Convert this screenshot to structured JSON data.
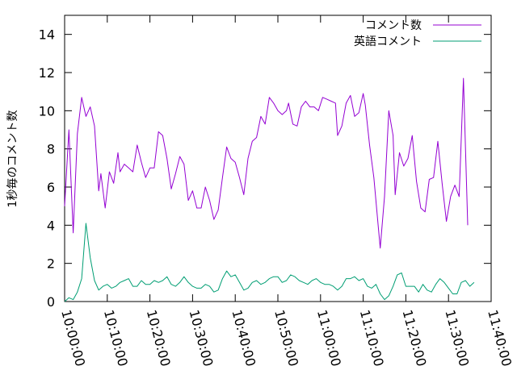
{
  "chart_data": {
    "type": "line",
    "ylabel": "1秒毎のコメント数",
    "ylim": [
      0,
      15
    ],
    "y_ticks": [
      0,
      2,
      4,
      6,
      8,
      10,
      12,
      14
    ],
    "y_tick_labels": [
      "0",
      "2",
      "4",
      "6",
      "8",
      "10",
      "12",
      "14"
    ],
    "x_tick_labels": [
      "10:00:00",
      "10:10:00",
      "10:20:00",
      "10:30:00",
      "10:40:00",
      "10:50:00",
      "11:00:00",
      "11:10:00",
      "11:20:00",
      "11:30:00",
      "11:40:00"
    ],
    "xlim_minutes": [
      0,
      100
    ],
    "legend_position": "top-right",
    "grid": false,
    "series": [
      {
        "name": "コメント数",
        "color": "#9400d3",
        "points": [
          [
            0.0,
            5.0
          ],
          [
            1.0,
            9.0
          ],
          [
            2.0,
            3.6
          ],
          [
            3.0,
            8.8
          ],
          [
            4.0,
            10.7
          ],
          [
            5.0,
            9.7
          ],
          [
            6.0,
            10.2
          ],
          [
            7.0,
            9.2
          ],
          [
            8.0,
            5.8
          ],
          [
            8.5,
            6.7
          ],
          [
            9.5,
            4.9
          ],
          [
            10.5,
            6.8
          ],
          [
            11.5,
            6.2
          ],
          [
            12.5,
            7.8
          ],
          [
            13.0,
            6.8
          ],
          [
            14.0,
            7.2
          ],
          [
            15.0,
            7.0
          ],
          [
            16.0,
            6.8
          ],
          [
            17.0,
            8.2
          ],
          [
            18.0,
            7.3
          ],
          [
            19.0,
            6.5
          ],
          [
            20.0,
            7.0
          ],
          [
            21.0,
            7.0
          ],
          [
            22.0,
            8.9
          ],
          [
            23.0,
            8.7
          ],
          [
            24.0,
            7.5
          ],
          [
            25.0,
            5.9
          ],
          [
            26.0,
            6.7
          ],
          [
            27.0,
            7.6
          ],
          [
            28.0,
            7.2
          ],
          [
            29.0,
            5.3
          ],
          [
            30.0,
            5.8
          ],
          [
            31.0,
            4.9
          ],
          [
            32.0,
            4.9
          ],
          [
            33.0,
            6.0
          ],
          [
            34.0,
            5.3
          ],
          [
            35.0,
            4.3
          ],
          [
            36.0,
            4.8
          ],
          [
            37.0,
            6.5
          ],
          [
            38.0,
            8.1
          ],
          [
            39.0,
            7.5
          ],
          [
            40.0,
            7.3
          ],
          [
            41.0,
            6.5
          ],
          [
            42.0,
            5.6
          ],
          [
            43.0,
            7.5
          ],
          [
            44.0,
            8.4
          ],
          [
            45.0,
            8.6
          ],
          [
            46.0,
            9.7
          ],
          [
            47.0,
            9.3
          ],
          [
            48.0,
            10.7
          ],
          [
            49.0,
            10.4
          ],
          [
            50.0,
            10.0
          ],
          [
            51.0,
            9.8
          ],
          [
            52.0,
            10.0
          ],
          [
            52.5,
            10.4
          ],
          [
            53.5,
            9.3
          ],
          [
            54.5,
            9.2
          ],
          [
            55.5,
            10.2
          ],
          [
            56.5,
            10.5
          ],
          [
            57.5,
            10.2
          ],
          [
            58.5,
            10.2
          ],
          [
            59.5,
            10.0
          ],
          [
            60.5,
            10.7
          ],
          [
            61.5,
            10.6
          ],
          [
            62.5,
            10.5
          ],
          [
            63.5,
            10.4
          ],
          [
            64.0,
            8.7
          ],
          [
            65.0,
            9.2
          ],
          [
            66.0,
            10.4
          ],
          [
            67.0,
            10.8
          ],
          [
            68.0,
            9.7
          ],
          [
            69.0,
            9.9
          ],
          [
            70.0,
            10.9
          ],
          [
            70.5,
            10.3
          ],
          [
            71.5,
            8.2
          ],
          [
            72.5,
            6.5
          ],
          [
            73.5,
            4.0
          ],
          [
            74.0,
            2.8
          ],
          [
            75.0,
            5.5
          ],
          [
            76.0,
            10.0
          ],
          [
            77.0,
            8.7
          ],
          [
            77.5,
            5.6
          ],
          [
            78.5,
            7.8
          ],
          [
            79.5,
            7.1
          ],
          [
            80.5,
            7.5
          ],
          [
            81.5,
            8.7
          ],
          [
            82.5,
            6.3
          ],
          [
            83.5,
            4.9
          ],
          [
            84.5,
            4.7
          ],
          [
            85.5,
            6.4
          ],
          [
            86.5,
            6.5
          ],
          [
            87.5,
            8.4
          ],
          [
            88.5,
            6.2
          ],
          [
            89.5,
            4.2
          ],
          [
            90.5,
            5.5
          ],
          [
            91.5,
            6.1
          ],
          [
            92.5,
            5.5
          ],
          [
            93.5,
            11.7
          ],
          [
            94.5,
            4.0
          ]
        ]
      },
      {
        "name": "英語コメント",
        "color": "#009e73",
        "points": [
          [
            0.0,
            0.0
          ],
          [
            1.0,
            0.2
          ],
          [
            2.0,
            0.1
          ],
          [
            3.0,
            0.5
          ],
          [
            4.0,
            1.2
          ],
          [
            5.0,
            4.1
          ],
          [
            6.0,
            2.3
          ],
          [
            7.0,
            1.1
          ],
          [
            8.0,
            0.6
          ],
          [
            9.0,
            0.8
          ],
          [
            10.0,
            0.9
          ],
          [
            11.0,
            0.7
          ],
          [
            12.0,
            0.8
          ],
          [
            13.0,
            1.0
          ],
          [
            14.0,
            1.1
          ],
          [
            15.0,
            1.2
          ],
          [
            16.0,
            0.8
          ],
          [
            17.0,
            0.8
          ],
          [
            18.0,
            1.1
          ],
          [
            19.0,
            0.9
          ],
          [
            20.0,
            0.9
          ],
          [
            21.0,
            1.1
          ],
          [
            22.0,
            1.0
          ],
          [
            23.0,
            1.1
          ],
          [
            24.0,
            1.3
          ],
          [
            25.0,
            0.9
          ],
          [
            26.0,
            0.8
          ],
          [
            27.0,
            1.0
          ],
          [
            28.0,
            1.3
          ],
          [
            29.0,
            1.0
          ],
          [
            30.0,
            0.8
          ],
          [
            31.0,
            0.7
          ],
          [
            32.0,
            0.7
          ],
          [
            33.0,
            0.9
          ],
          [
            34.0,
            0.8
          ],
          [
            35.0,
            0.5
          ],
          [
            36.0,
            0.6
          ],
          [
            37.0,
            1.2
          ],
          [
            38.0,
            1.6
          ],
          [
            39.0,
            1.3
          ],
          [
            40.0,
            1.4
          ],
          [
            41.0,
            1.0
          ],
          [
            42.0,
            0.6
          ],
          [
            43.0,
            0.7
          ],
          [
            44.0,
            1.0
          ],
          [
            45.0,
            1.1
          ],
          [
            46.0,
            0.9
          ],
          [
            47.0,
            1.0
          ],
          [
            48.0,
            1.2
          ],
          [
            49.0,
            1.3
          ],
          [
            50.0,
            1.3
          ],
          [
            51.0,
            1.0
          ],
          [
            52.0,
            1.1
          ],
          [
            53.0,
            1.4
          ],
          [
            54.0,
            1.3
          ],
          [
            55.0,
            1.1
          ],
          [
            56.0,
            1.0
          ],
          [
            57.0,
            0.9
          ],
          [
            58.0,
            1.1
          ],
          [
            59.0,
            1.2
          ],
          [
            60.0,
            1.0
          ],
          [
            61.0,
            0.9
          ],
          [
            62.0,
            0.9
          ],
          [
            63.0,
            0.8
          ],
          [
            64.0,
            0.6
          ],
          [
            65.0,
            0.8
          ],
          [
            66.0,
            1.2
          ],
          [
            67.0,
            1.2
          ],
          [
            68.0,
            1.3
          ],
          [
            69.0,
            1.1
          ],
          [
            70.0,
            1.2
          ],
          [
            71.0,
            0.8
          ],
          [
            72.0,
            0.7
          ],
          [
            73.0,
            0.9
          ],
          [
            74.0,
            0.4
          ],
          [
            75.0,
            0.1
          ],
          [
            76.0,
            0.3
          ],
          [
            77.0,
            0.8
          ],
          [
            78.0,
            1.4
          ],
          [
            79.0,
            1.5
          ],
          [
            80.0,
            0.8
          ],
          [
            81.0,
            0.8
          ],
          [
            82.0,
            0.8
          ],
          [
            83.0,
            0.5
          ],
          [
            84.0,
            0.9
          ],
          [
            85.0,
            0.6
          ],
          [
            86.0,
            0.5
          ],
          [
            87.0,
            0.9
          ],
          [
            88.0,
            1.2
          ],
          [
            89.0,
            1.0
          ],
          [
            90.0,
            0.7
          ],
          [
            91.0,
            0.4
          ],
          [
            92.0,
            0.4
          ],
          [
            93.0,
            1.0
          ],
          [
            94.0,
            1.1
          ],
          [
            95.0,
            0.8
          ],
          [
            96.0,
            1.0
          ]
        ]
      }
    ]
  }
}
